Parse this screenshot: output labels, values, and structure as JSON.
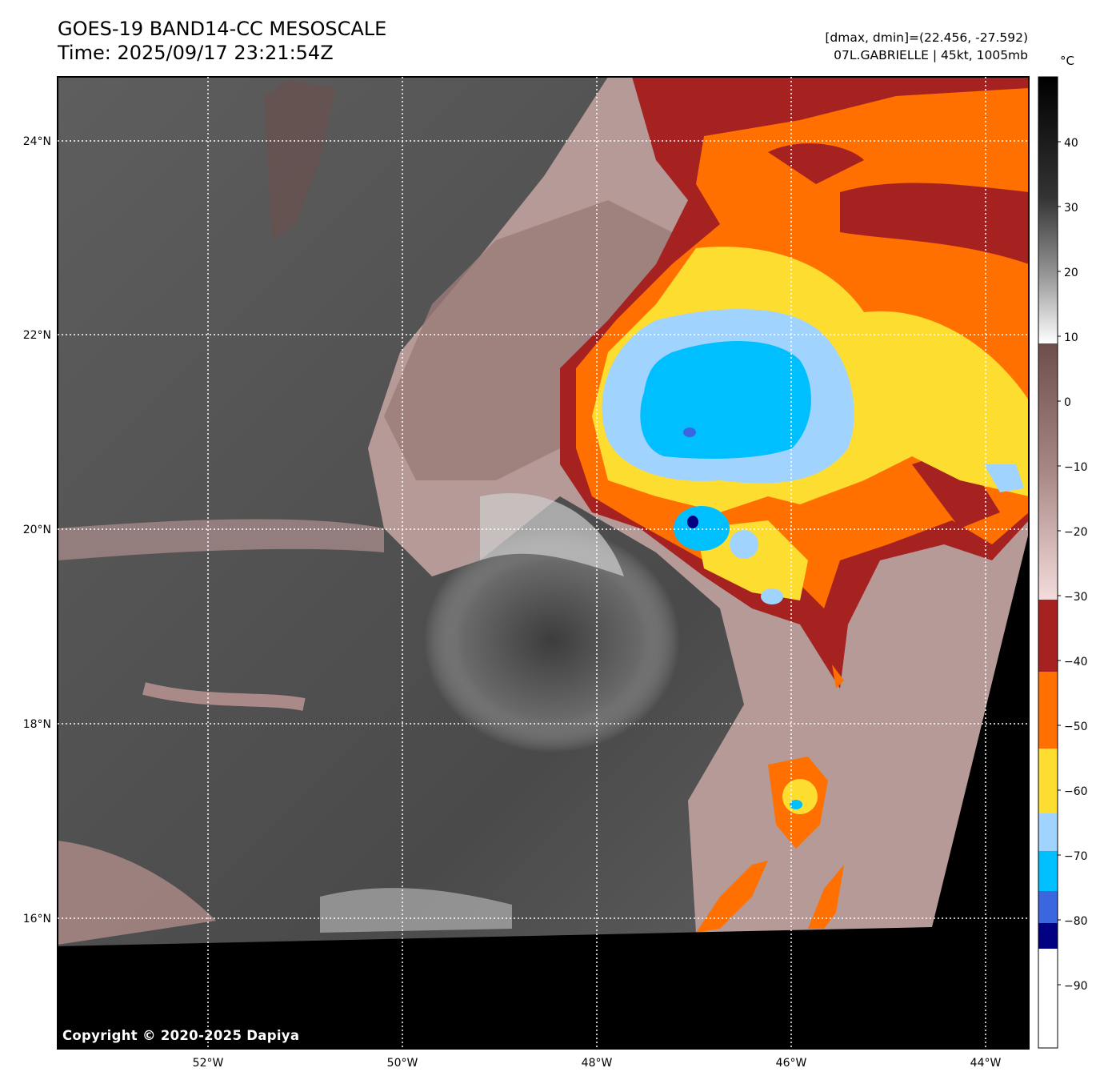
{
  "header": {
    "title_line1": "GOES-19 BAND14-CC MESOSCALE",
    "title_line2": "Time: 2025/09/17 23:21:54Z",
    "info_line1": "[dmax, dmin]=(22.456, -27.592)",
    "info_line2": "07L.GABRIELLE | 45kt, 1005mb"
  },
  "map": {
    "lat_labels": [
      "24°N",
      "22°N",
      "20°N",
      "18°N",
      "16°N"
    ],
    "lon_labels": [
      "52°W",
      "50°W",
      "48°W",
      "46°W",
      "44°W"
    ],
    "copyright": "Copyright © 2020-2025 Dapiya",
    "gridlines": "dotted white"
  },
  "colorbar": {
    "unit": "°C",
    "ticks": [
      "40",
      "30",
      "20",
      "10",
      "0",
      "−10",
      "−20",
      "−30",
      "−40",
      "−50",
      "−60",
      "−70",
      "−80",
      "−90"
    ],
    "bands": [
      {
        "from": -90,
        "to": -100,
        "color": "#ffffff"
      },
      {
        "from": -86,
        "to": -90,
        "color": "#000080"
      },
      {
        "from": -82,
        "to": -86,
        "color": "#3a66e0"
      },
      {
        "from": -76,
        "to": -82,
        "color": "#00bfff"
      },
      {
        "from": -66,
        "to": -76,
        "color": "#a0d4ff"
      },
      {
        "from": -56,
        "to": -66,
        "color": "#fddd30"
      },
      {
        "from": -42,
        "to": -56,
        "color": "#ff7000"
      },
      {
        "from": -31,
        "to": -42,
        "color": "#a62220"
      },
      {
        "from": 9,
        "to": -31,
        "color": "gradient pink-brown"
      },
      {
        "from": 49,
        "to": 9,
        "color": "gradient white-black"
      }
    ]
  }
}
